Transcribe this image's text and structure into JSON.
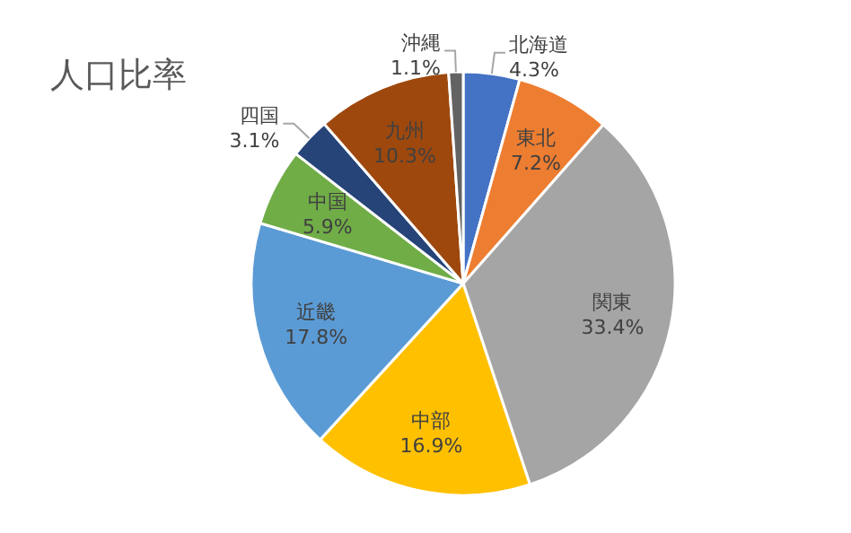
{
  "chart_data": {
    "type": "pie",
    "title": "人口比率",
    "categories": [
      "北海道",
      "東北",
      "関東",
      "中部",
      "近畿",
      "中国",
      "四国",
      "九州",
      "沖縄"
    ],
    "values": [
      4.3,
      7.2,
      33.4,
      16.9,
      17.8,
      5.9,
      3.1,
      10.3,
      1.1
    ],
    "value_labels": [
      "4.3%",
      "7.2%",
      "33.4%",
      "16.9%",
      "17.8%",
      "5.9%",
      "3.1%",
      "10.3%",
      "1.1%"
    ],
    "colors": [
      "#4472c4",
      "#ed7d31",
      "#a5a5a5",
      "#ffc000",
      "#5b9bd5",
      "#70ad47",
      "#264478",
      "#9e480e",
      "#636363"
    ]
  }
}
